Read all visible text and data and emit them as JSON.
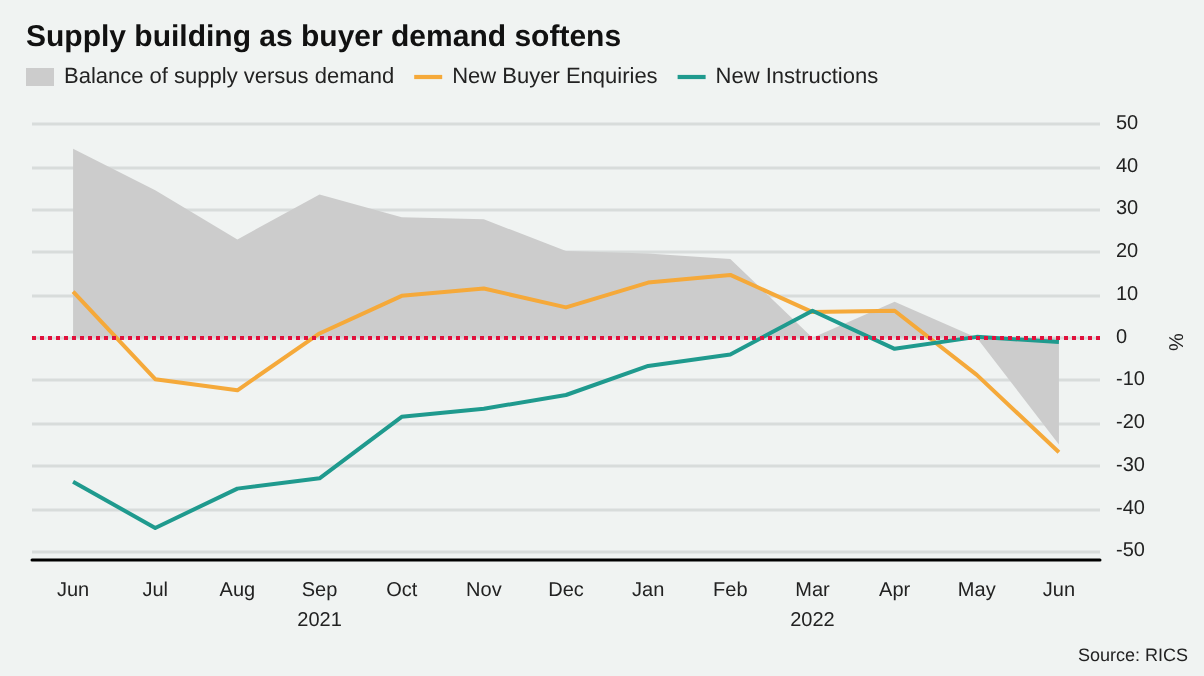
{
  "chart_data": {
    "type": "line",
    "title": "Supply building as buyer demand softens",
    "ylabel": "%",
    "categories": [
      "Jun",
      "Jul",
      "Aug",
      "Sep\n2021",
      "Oct",
      "Nov",
      "Dec",
      "Jan",
      "Feb",
      "Mar\n2022",
      "Apr",
      "May",
      "Jun"
    ],
    "series": [
      {
        "name": "Balance of supply versus demand",
        "type": "area",
        "color": "#cccccc",
        "values": [
          44.2,
          34.5,
          23,
          33.5,
          28.2,
          27.7,
          20.3,
          19.7,
          18.4,
          0,
          8.4,
          0,
          -25
        ]
      },
      {
        "name": "New Buyer Enquiries",
        "color": "#f5a93a",
        "values": [
          10.8,
          -9.7,
          -12.3,
          1,
          9.8,
          11.5,
          7.1,
          12.9,
          14.7,
          6,
          6.3,
          -8.7,
          -26.8
        ]
      },
      {
        "name": "New Instructions",
        "color": "#1f9a8e",
        "values": [
          -33.7,
          -44.5,
          -35.3,
          -32.9,
          -18.5,
          -16.6,
          -13.4,
          -6.6,
          -3.9,
          6.3,
          -2.6,
          0.2,
          -1
        ]
      }
    ],
    "ylim": [
      -52,
      50
    ],
    "yticks": [
      -50,
      -40,
      -30,
      -20,
      -10,
      0,
      10,
      20,
      30,
      40,
      50
    ],
    "grid": "y",
    "legend": "top left",
    "marker": "none",
    "line_style": "solid",
    "ref_lines": [
      {
        "axis": "y",
        "value": 0,
        "color": "#e0103c",
        "line_style": "dotted"
      }
    ],
    "annotations": [
      "Source: RICS"
    ]
  }
}
